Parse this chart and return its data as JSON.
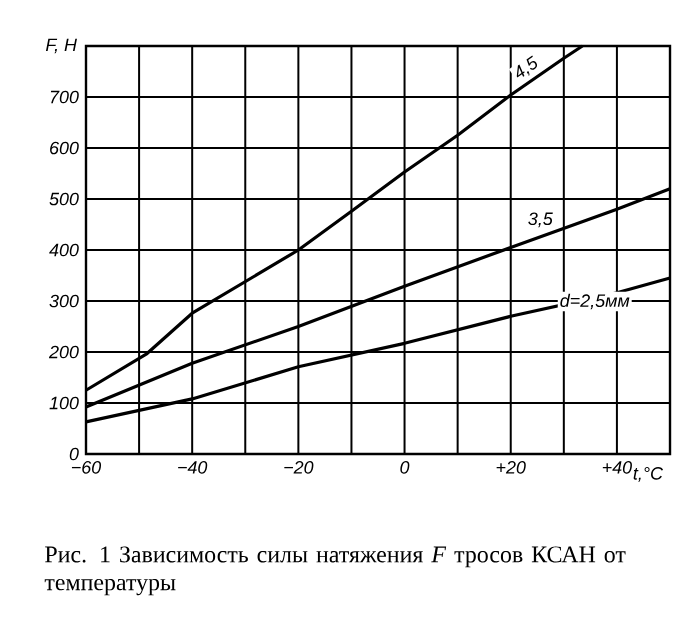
{
  "chart_data": {
    "type": "line",
    "xlabel": "t,°C",
    "ylabel": "F, H",
    "xlim": [
      -60,
      50
    ],
    "ylim": [
      0,
      800
    ],
    "xticks": [
      {
        "value": -60,
        "label": "−60"
      },
      {
        "value": -50,
        "label": null
      },
      {
        "value": -40,
        "label": "−40"
      },
      {
        "value": -30,
        "label": null
      },
      {
        "value": -20,
        "label": "−20"
      },
      {
        "value": -10,
        "label": null
      },
      {
        "value": 0,
        "label": "0"
      },
      {
        "value": 10,
        "label": null
      },
      {
        "value": 20,
        "label": "+20"
      },
      {
        "value": 30,
        "label": null
      },
      {
        "value": 40,
        "label": "+40"
      },
      {
        "value": 50,
        "label": null
      }
    ],
    "yticks": [
      0,
      100,
      200,
      300,
      400,
      500,
      600,
      700
    ],
    "grid": true,
    "line_style": "solid",
    "marker": "none",
    "series": [
      {
        "name": "d=2,5мм",
        "color": "#000000",
        "x": [
          -60,
          -40,
          -20,
          0,
          20,
          40,
          50
        ],
        "values": [
          63,
          108,
          171,
          217,
          270,
          316,
          345
        ]
      },
      {
        "name": "3,5",
        "color": "#000000",
        "x": [
          -60,
          -40,
          -20,
          0,
          20,
          40,
          50
        ],
        "values": [
          92,
          178,
          250,
          329,
          405,
          480,
          520
        ]
      },
      {
        "name": "4,5",
        "color": "#000000",
        "x": [
          -60,
          -48.5,
          -40,
          -20,
          -10,
          0,
          10,
          20,
          30,
          33.5
        ],
        "values": [
          125,
          197,
          276,
          400,
          476,
          553,
          625,
          704,
          776,
          800
        ]
      }
    ],
    "annotations": [
      "Рис. 1    Зависимость силы натяжения *F* тросов КСАН от температуры"
    ]
  }
}
